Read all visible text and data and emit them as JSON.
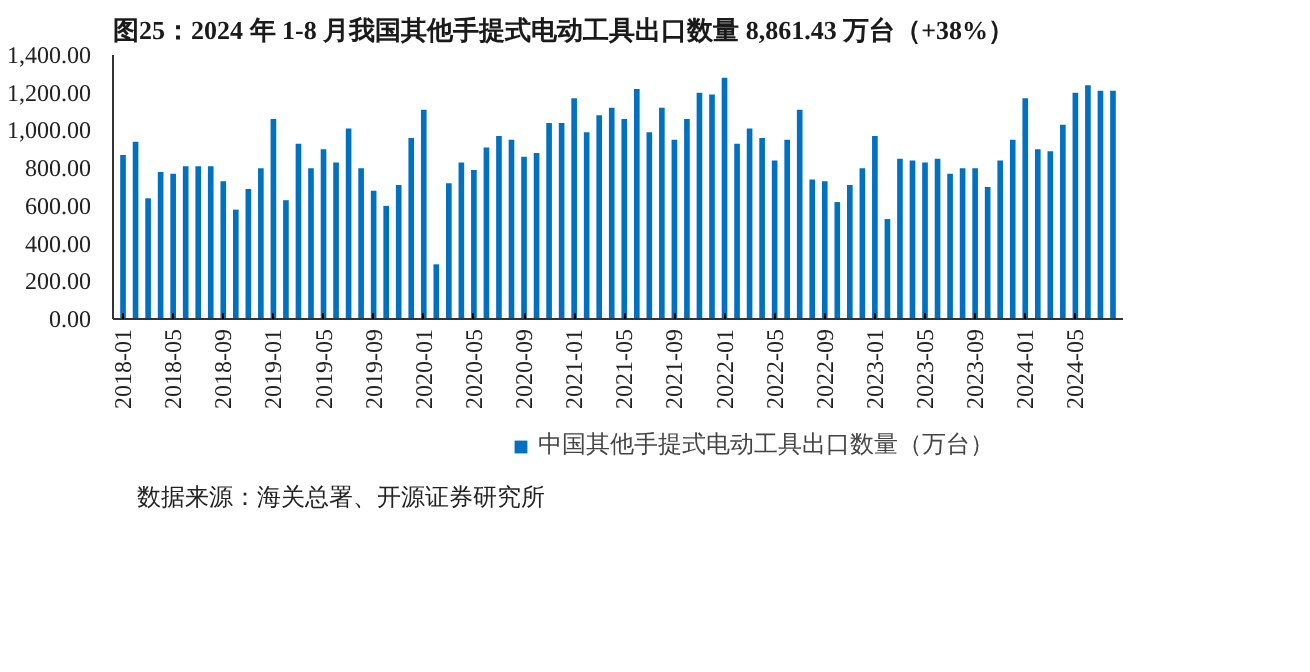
{
  "chart_data": {
    "type": "bar",
    "title": "图25：2024 年 1-8 月我国其他手提式电动工具出口数量 8,861.43 万台（+38%）",
    "annotations": [
      "数据来源：海关总署、开源证券研究所"
    ],
    "categories": [
      "2018-01",
      null,
      null,
      null,
      "2018-05",
      null,
      null,
      null,
      "2018-09",
      null,
      null,
      null,
      "2019-01",
      null,
      null,
      null,
      "2019-05",
      null,
      null,
      null,
      "2019-09",
      null,
      null,
      null,
      "2020-01",
      null,
      null,
      null,
      "2020-05",
      null,
      null,
      null,
      "2020-09",
      null,
      null,
      null,
      "2021-01",
      null,
      null,
      null,
      "2021-05",
      null,
      null,
      null,
      "2021-09",
      null,
      null,
      null,
      "2022-01",
      null,
      null,
      null,
      "2022-05",
      null,
      null,
      null,
      "2022-09",
      null,
      null,
      null,
      "2023-01",
      null,
      null,
      null,
      "2023-05",
      null,
      null,
      null,
      "2023-09",
      null,
      null,
      null,
      "2024-01",
      null,
      null,
      null,
      "2024-05",
      null,
      null,
      null
    ],
    "series": [
      {
        "name": "中国其他手提式电动工具出口数量（万台）",
        "color": "#0070c0",
        "values": [
          870,
          940,
          640,
          780,
          770,
          810,
          810,
          810,
          730,
          580,
          690,
          800,
          1060,
          630,
          930,
          800,
          900,
          830,
          1010,
          800,
          680,
          600,
          710,
          960,
          1110,
          290,
          720,
          830,
          790,
          910,
          970,
          950,
          860,
          880,
          1040,
          1040,
          1170,
          990,
          1080,
          1120,
          1060,
          1220,
          990,
          1120,
          950,
          1060,
          1200,
          1190,
          1280,
          930,
          1010,
          960,
          840,
          950,
          1110,
          740,
          730,
          620,
          710,
          800,
          970,
          530,
          850,
          840,
          830,
          850,
          770,
          800,
          800,
          700,
          840,
          950,
          1170,
          900,
          890,
          1030,
          1200,
          1240,
          1210,
          1210
        ]
      }
    ],
    "ylim": [
      0,
      1400
    ],
    "yticks": [
      {
        "value": 0,
        "label": "0.00"
      },
      {
        "value": 200,
        "label": "200.00"
      },
      {
        "value": 400,
        "label": "400.00"
      },
      {
        "value": 600,
        "label": "600.00"
      },
      {
        "value": 800,
        "label": "800.00"
      },
      {
        "value": 1000,
        "label": "1,000.00"
      },
      {
        "value": 1200,
        "label": "1,200.00"
      },
      {
        "value": 1400,
        "label": "1,400.00"
      }
    ],
    "legend": "bottom"
  }
}
